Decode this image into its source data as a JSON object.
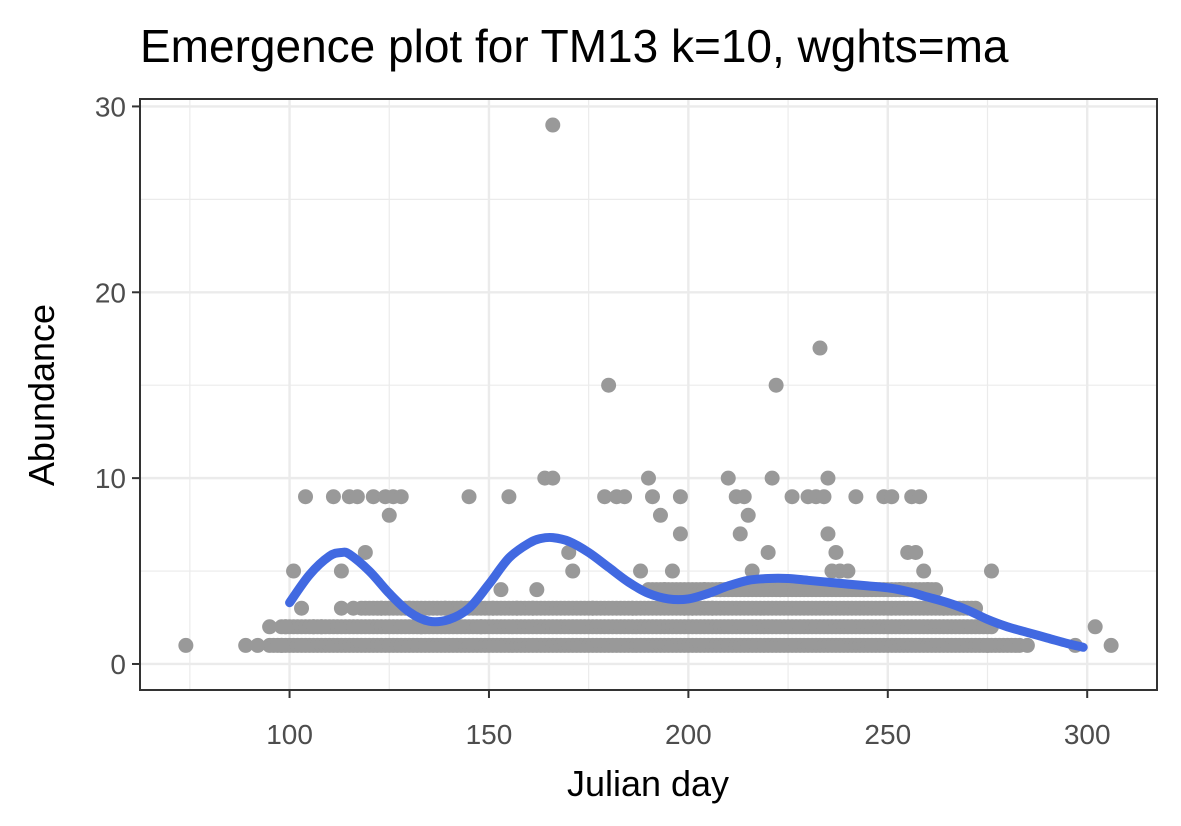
{
  "chart_data": {
    "type": "scatter",
    "title": "Emergence plot for TM13 k=10, wghts=ma",
    "xlabel": "Julian day",
    "ylabel": "Abundance",
    "xlim": [
      62.5,
      317.5
    ],
    "ylim": [
      -1.4,
      30.4
    ],
    "x_ticks": [
      100,
      150,
      200,
      250,
      300
    ],
    "y_ticks": [
      0,
      10,
      20,
      30
    ],
    "x_tick_labels": [
      "100",
      "150",
      "200",
      "250",
      "300"
    ],
    "y_tick_labels": [
      "0",
      "10",
      "20",
      "30"
    ],
    "grid": true,
    "legend": "none",
    "colors": {
      "points": "#999999",
      "smooth": "#4169e1",
      "grid": "#ebebeb",
      "panel_border": "#333333"
    },
    "series": [
      {
        "type": "scatter",
        "points": [
          [
            74,
            1
          ],
          [
            89,
            1
          ],
          [
            92,
            1
          ],
          [
            95,
            2
          ],
          [
            98,
            1
          ],
          [
            99,
            2
          ],
          [
            101,
            5
          ],
          [
            103,
            3
          ],
          [
            104,
            9
          ],
          [
            106,
            2
          ],
          [
            108,
            2
          ],
          [
            111,
            9
          ],
          [
            113,
            5
          ],
          [
            113,
            3
          ],
          [
            115,
            9
          ],
          [
            116,
            3
          ],
          [
            117,
            9
          ],
          [
            119,
            6
          ],
          [
            121,
            9
          ],
          [
            123,
            3
          ],
          [
            124,
            9
          ],
          [
            125,
            8
          ],
          [
            126,
            9
          ],
          [
            128,
            9
          ],
          [
            130,
            3
          ],
          [
            133,
            2
          ],
          [
            139,
            3
          ],
          [
            143,
            3
          ],
          [
            145,
            9
          ],
          [
            148,
            2
          ],
          [
            151,
            3
          ],
          [
            153,
            4
          ],
          [
            155,
            9
          ],
          [
            157,
            3
          ],
          [
            161,
            3
          ],
          [
            162,
            4
          ],
          [
            164,
            10
          ],
          [
            166,
            10
          ],
          [
            166,
            29
          ],
          [
            170,
            6
          ],
          [
            171,
            5
          ],
          [
            176,
            3
          ],
          [
            179,
            9
          ],
          [
            180,
            15
          ],
          [
            182,
            9
          ],
          [
            184,
            9
          ],
          [
            186,
            3
          ],
          [
            188,
            5
          ],
          [
            190,
            10
          ],
          [
            191,
            9
          ],
          [
            193,
            8
          ],
          [
            194,
            4
          ],
          [
            196,
            5
          ],
          [
            198,
            9
          ],
          [
            198,
            7
          ],
          [
            199,
            3
          ],
          [
            201,
            3
          ],
          [
            204,
            4
          ],
          [
            206,
            3
          ],
          [
            208,
            4
          ],
          [
            210,
            10
          ],
          [
            212,
            9
          ],
          [
            213,
            7
          ],
          [
            214,
            9
          ],
          [
            215,
            8
          ],
          [
            216,
            5
          ],
          [
            220,
            6
          ],
          [
            221,
            10
          ],
          [
            222,
            15
          ],
          [
            223,
            4
          ],
          [
            226,
            9
          ],
          [
            230,
            9
          ],
          [
            232,
            9
          ],
          [
            233,
            17
          ],
          [
            234,
            9
          ],
          [
            235,
            7
          ],
          [
            235,
            10
          ],
          [
            236,
            5
          ],
          [
            237,
            6
          ],
          [
            238,
            5
          ],
          [
            240,
            5
          ],
          [
            242,
            9
          ],
          [
            244,
            4
          ],
          [
            249,
            9
          ],
          [
            251,
            9
          ],
          [
            253,
            4
          ],
          [
            255,
            6
          ],
          [
            256,
            9
          ],
          [
            257,
            6
          ],
          [
            258,
            9
          ],
          [
            259,
            5
          ],
          [
            260,
            4
          ],
          [
            264,
            3
          ],
          [
            272,
            3
          ],
          [
            275,
            1
          ],
          [
            276,
            5
          ],
          [
            285,
            1
          ],
          [
            297,
            1
          ],
          [
            302,
            2
          ],
          [
            306,
            1
          ]
        ],
        "band_ranges": [
          {
            "y": 1,
            "from": 95,
            "to": 283
          },
          {
            "y": 2,
            "from": 98,
            "to": 276
          },
          {
            "y": 3,
            "from": 118,
            "to": 271
          },
          {
            "y": 4,
            "from": 190,
            "to": 262
          }
        ]
      },
      {
        "type": "line",
        "x": [
          100,
          105,
          110,
          113,
          115,
          120,
          125,
          130,
          135,
          140,
          145,
          150,
          155,
          160,
          163,
          166,
          170,
          175,
          180,
          185,
          190,
          195,
          200,
          205,
          210,
          215,
          220,
          225,
          230,
          235,
          240,
          245,
          250,
          255,
          260,
          265,
          270,
          275,
          280,
          285,
          290,
          295,
          299
        ],
        "y": [
          3.3,
          4.8,
          5.8,
          6.0,
          5.9,
          5.0,
          3.8,
          2.8,
          2.3,
          2.4,
          3.0,
          4.3,
          5.7,
          6.5,
          6.75,
          6.8,
          6.6,
          6.0,
          5.2,
          4.4,
          3.8,
          3.5,
          3.5,
          3.8,
          4.2,
          4.5,
          4.6,
          4.6,
          4.5,
          4.4,
          4.3,
          4.2,
          4.1,
          3.9,
          3.6,
          3.3,
          2.9,
          2.4,
          2.0,
          1.7,
          1.4,
          1.1,
          0.9
        ]
      }
    ]
  }
}
